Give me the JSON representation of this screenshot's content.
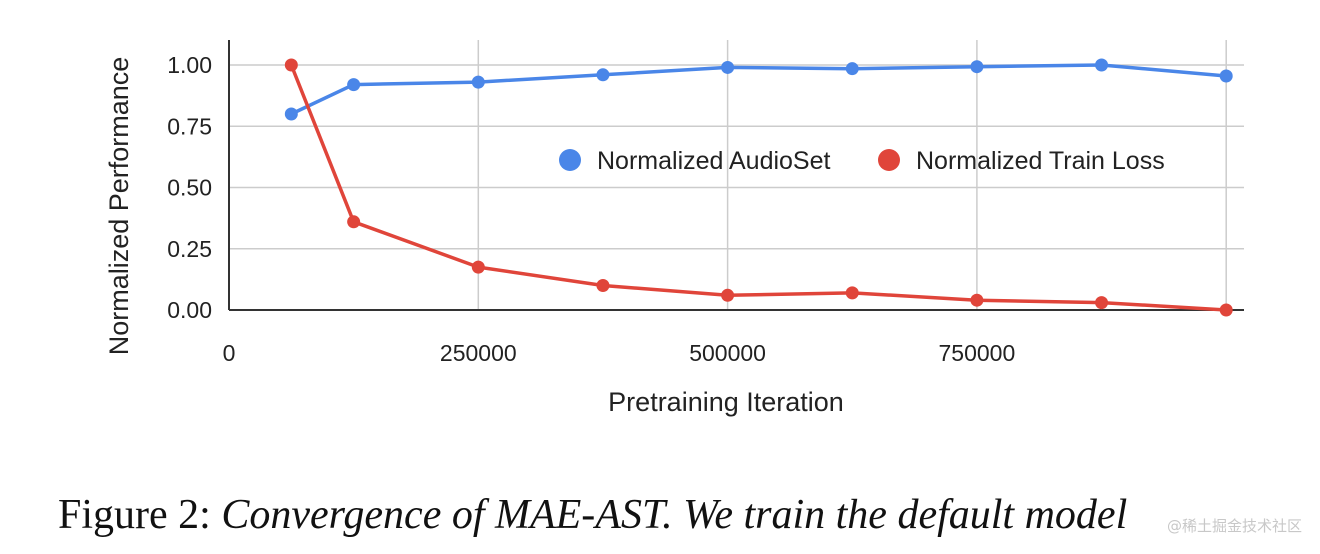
{
  "chart_data": {
    "type": "line",
    "xlabel": "Pretraining Iteration",
    "ylabel": "Normalized Performance",
    "xlim": [
      0,
      1000000
    ],
    "ylim": [
      0,
      1.1
    ],
    "x_ticks": [
      "0",
      "250000",
      "500000",
      "750000"
    ],
    "y_ticks": [
      "0.00",
      "0.25",
      "0.50",
      "0.75",
      "1.00"
    ],
    "x_tick_values": [
      0,
      250000,
      500000,
      750000
    ],
    "y_tick_values": [
      0,
      0.25,
      0.5,
      0.75,
      1.0
    ],
    "grid": true,
    "legend_position": "center-right",
    "series": [
      {
        "name": "Normalized AudioSet",
        "color": "#4a86e8",
        "x": [
          62500,
          125000,
          250000,
          375000,
          500000,
          625000,
          750000,
          875000,
          1000000
        ],
        "y": [
          0.8,
          0.92,
          0.93,
          0.96,
          0.99,
          0.985,
          0.993,
          1.0,
          0.955
        ]
      },
      {
        "name": "Normalized Train Loss",
        "color": "#e0453a",
        "x": [
          62500,
          125000,
          250000,
          375000,
          500000,
          625000,
          750000,
          875000,
          1000000
        ],
        "y": [
          1.0,
          0.36,
          0.175,
          0.1,
          0.06,
          0.07,
          0.04,
          0.03,
          0.0
        ]
      }
    ]
  },
  "caption": {
    "label": "Figure 2:",
    "text": "Convergence of MAE-AST. We train the default model"
  },
  "watermark": "@稀土掘金技术社区"
}
